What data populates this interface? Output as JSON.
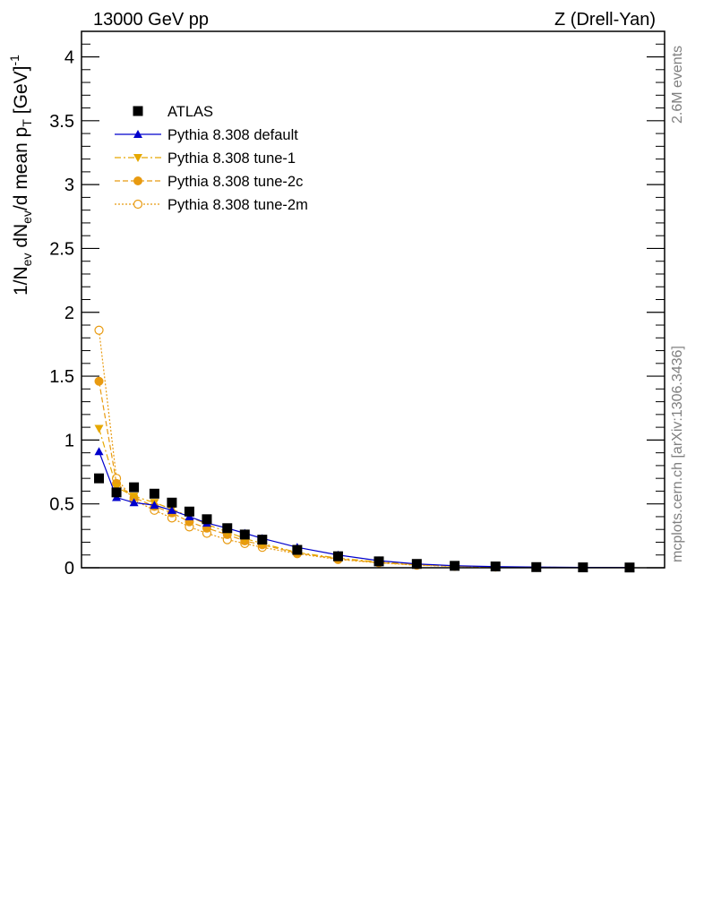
{
  "header": {
    "left": "13000 GeV pp",
    "right": "Z (Drell-Yan)"
  },
  "side_labels": {
    "events": "2.6M events",
    "source": "mcplots.cern.ch [arXiv:1306.3436]"
  },
  "chart_data": {
    "type": "scatter",
    "ylabel": "1/N_ev dN_ev/d mean p_T [GeV]^-1",
    "ylim": [
      0,
      4.2
    ],
    "yticks": [
      "0",
      "0.5",
      "1",
      "1.5",
      "2",
      "2.5",
      "3",
      "3.5",
      "4"
    ],
    "xlim": [
      0,
      1
    ],
    "x_tick_labels_shown": false,
    "grid": false,
    "legend_position": "top-left",
    "series": [
      {
        "name": "ATLAS",
        "color": "#000000",
        "marker": "square",
        "line": "none",
        "x": [
          0.03,
          0.06,
          0.09,
          0.125,
          0.155,
          0.185,
          0.215,
          0.25,
          0.28,
          0.31,
          0.37,
          0.44,
          0.51,
          0.575,
          0.64,
          0.71,
          0.78,
          0.86,
          0.94
        ],
        "y": [
          0.7,
          0.59,
          0.63,
          0.58,
          0.51,
          0.44,
          0.38,
          0.31,
          0.26,
          0.22,
          0.14,
          0.09,
          0.05,
          0.03,
          0.015,
          0.01,
          0.005,
          0.003,
          0.002
        ]
      },
      {
        "name": "Pythia 8.308 default",
        "color": "#0000cc",
        "marker": "triangle-up",
        "line": "solid",
        "x": [
          0.03,
          0.06,
          0.09,
          0.125,
          0.155,
          0.185,
          0.215,
          0.25,
          0.28,
          0.31,
          0.37,
          0.44,
          0.51,
          0.575,
          0.64,
          0.71,
          0.78,
          0.86,
          0.94
        ],
        "y": [
          0.91,
          0.55,
          0.51,
          0.49,
          0.45,
          0.4,
          0.35,
          0.31,
          0.27,
          0.23,
          0.16,
          0.1,
          0.055,
          0.03,
          0.016,
          0.009,
          0.005,
          0.003,
          0.002
        ]
      },
      {
        "name": "Pythia 8.308 tune-1",
        "color": "#e6a800",
        "marker": "triangle-down",
        "line": "dashdot",
        "x": [
          0.03,
          0.06,
          0.09,
          0.125,
          0.155,
          0.185,
          0.215,
          0.25,
          0.28,
          0.31,
          0.37,
          0.44,
          0.51,
          0.575,
          0.64,
          0.71,
          0.78,
          0.86,
          0.94
        ],
        "y": [
          1.09,
          0.63,
          0.56,
          0.51,
          0.46,
          0.4,
          0.34,
          0.28,
          0.23,
          0.19,
          0.12,
          0.075,
          0.045,
          0.025,
          0.013,
          0.007,
          0.004,
          0.002,
          0.001
        ]
      },
      {
        "name": "Pythia 8.308 tune-2c",
        "color": "#e89a10",
        "marker": "circle",
        "line": "dashed",
        "x": [
          0.03,
          0.06,
          0.09,
          0.125,
          0.155,
          0.185,
          0.215,
          0.25,
          0.28,
          0.31,
          0.37,
          0.44,
          0.51,
          0.575,
          0.64,
          0.71,
          0.78,
          0.86,
          0.94
        ],
        "y": [
          1.46,
          0.66,
          0.55,
          0.48,
          0.43,
          0.36,
          0.31,
          0.26,
          0.21,
          0.18,
          0.115,
          0.07,
          0.04,
          0.022,
          0.012,
          0.006,
          0.003,
          0.002,
          0.001
        ]
      },
      {
        "name": "Pythia 8.308 tune-2m",
        "color": "#e89a10",
        "marker": "circle-open",
        "line": "dotted",
        "x": [
          0.03,
          0.06,
          0.09,
          0.125,
          0.155,
          0.185,
          0.215,
          0.25,
          0.28,
          0.31,
          0.37,
          0.44,
          0.51,
          0.575,
          0.64,
          0.71,
          0.78,
          0.86,
          0.94
        ],
        "y": [
          1.86,
          0.7,
          0.53,
          0.45,
          0.39,
          0.32,
          0.27,
          0.22,
          0.19,
          0.16,
          0.11,
          0.065,
          0.038,
          0.02,
          0.011,
          0.006,
          0.003,
          0.002,
          0.001
        ]
      }
    ]
  }
}
